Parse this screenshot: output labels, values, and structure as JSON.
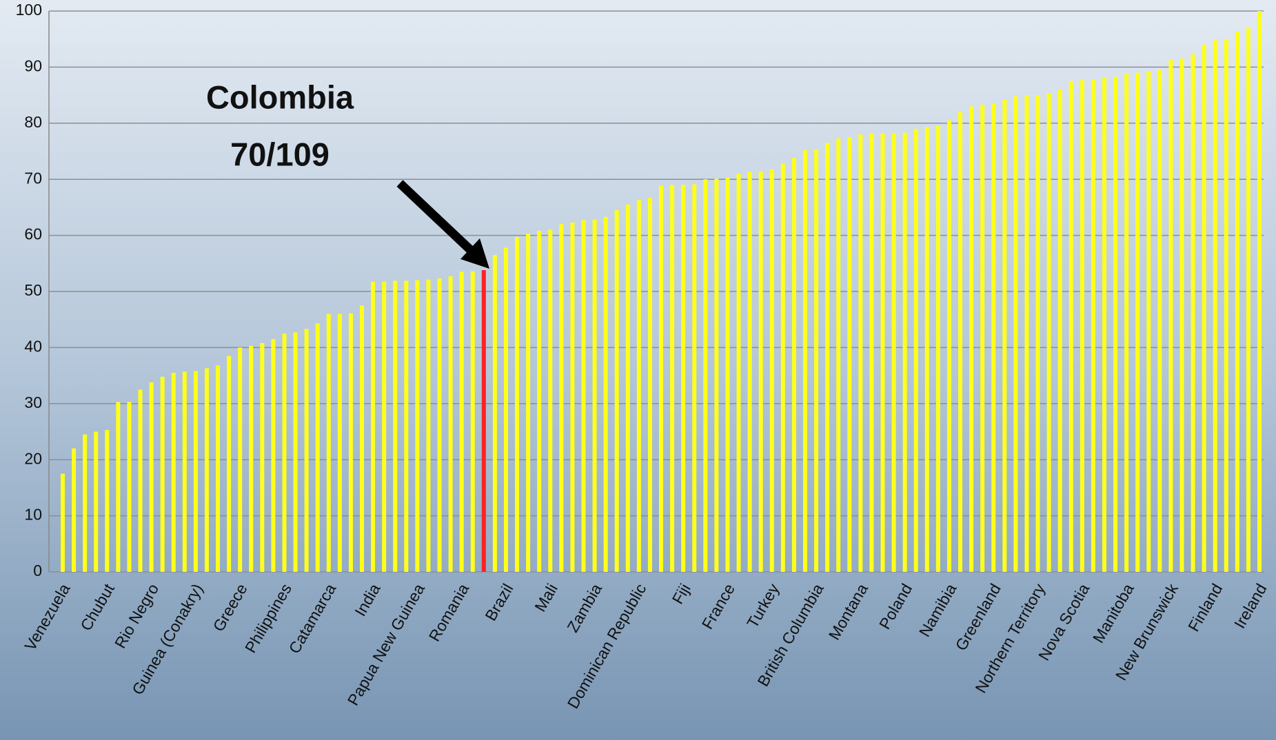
{
  "chart_data": {
    "type": "bar",
    "categories": [
      "Venezuela",
      null,
      null,
      null,
      "Chubut",
      null,
      null,
      null,
      "Rio Negro",
      null,
      null,
      null,
      "Guinea (Conakry)",
      null,
      null,
      null,
      "Greece",
      null,
      null,
      null,
      "Philippines",
      null,
      null,
      null,
      "Catamarca",
      null,
      null,
      null,
      "India",
      null,
      null,
      null,
      "Papua New Guinea",
      null,
      null,
      null,
      "Romania",
      null,
      null,
      null,
      "Brazil",
      null,
      null,
      null,
      "Mali",
      null,
      null,
      null,
      "Zambia",
      null,
      null,
      null,
      "Dominican Republic",
      null,
      null,
      null,
      "Fiji",
      null,
      null,
      null,
      "France",
      null,
      null,
      null,
      "Turkey",
      null,
      null,
      null,
      "British Columbia",
      null,
      null,
      null,
      "Montana",
      null,
      null,
      null,
      "Poland",
      null,
      null,
      null,
      "Namibia",
      null,
      null,
      null,
      "Greenland",
      null,
      null,
      null,
      "Northern Territory",
      null,
      null,
      null,
      "Nova Scotia",
      null,
      null,
      null,
      "Manitoba",
      null,
      null,
      null,
      "New Brunswick",
      null,
      null,
      null,
      "Finland",
      null,
      null,
      null,
      "Ireland"
    ],
    "values": [
      17.5,
      22,
      24.5,
      25,
      25.3,
      30.3,
      30.3,
      32.5,
      33.8,
      34.8,
      35.5,
      35.7,
      35.8,
      36.3,
      36.8,
      38.5,
      40,
      40.3,
      40.8,
      41.5,
      42.5,
      42.7,
      43.3,
      44.3,
      46,
      46,
      46.1,
      47.5,
      51.7,
      51.7,
      51.9,
      51.9,
      52,
      52.1,
      52.3,
      52.7,
      53.5,
      53.6,
      53.8,
      56.5,
      57.8,
      59.7,
      60.3,
      60.8,
      61,
      62,
      62.3,
      62.7,
      62.8,
      63.3,
      64.5,
      65.5,
      66.3,
      66.7,
      68.8,
      69,
      69,
      69.1,
      70,
      70.1,
      70.3,
      71,
      71.3,
      71.4,
      71.8,
      72.8,
      73.8,
      75.2,
      75.3,
      76.5,
      77.3,
      77.5,
      78,
      78.2,
      78.2,
      78.2,
      78.3,
      79,
      79.3,
      79.5,
      80.5,
      82,
      83,
      83.3,
      83.5,
      84.2,
      84.8,
      85,
      85,
      85.3,
      86,
      87.5,
      87.7,
      87.7,
      88.2,
      88.3,
      88.8,
      89,
      89.3,
      89.5,
      91.3,
      91.5,
      92.3,
      94,
      94.8,
      95,
      96.3,
      97,
      100
    ],
    "color": "#ffff1a",
    "highlight": {
      "category_index": 38,
      "color": "#ff2222"
    },
    "annotations": [
      "Colombia",
      "70/109"
    ],
    "ylim": [
      0,
      100
    ],
    "yticks": [
      0,
      10,
      20,
      30,
      40,
      50,
      60,
      70,
      80,
      90,
      100
    ],
    "grid": true
  }
}
